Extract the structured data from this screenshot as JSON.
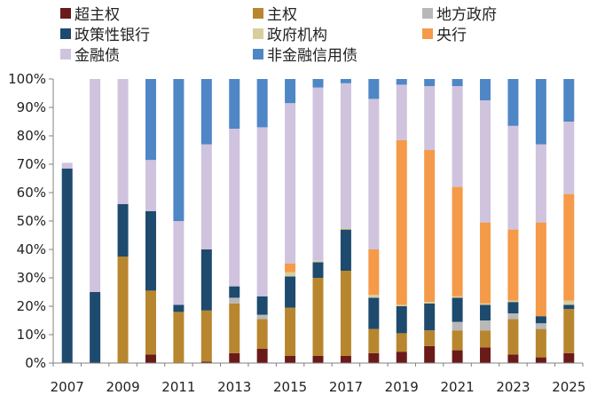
{
  "chart_data": {
    "type": "bar",
    "stacked": true,
    "title": "",
    "xlabel": "",
    "ylabel": "",
    "ylim": [
      0,
      100
    ],
    "y_tick_suffix": "%",
    "y_ticks": [
      0,
      10,
      20,
      30,
      40,
      50,
      60,
      70,
      80,
      90,
      100
    ],
    "y_tick_labels": [
      "0%",
      "10%",
      "20%",
      "30%",
      "40%",
      "50%",
      "60%",
      "70%",
      "80%",
      "90%",
      "100%"
    ],
    "grid": false,
    "legend_position": "top",
    "categories": [
      "2007",
      "2008",
      "2009",
      "2010",
      "2011",
      "2012",
      "2013",
      "2014",
      "2015",
      "2016",
      "2017",
      "2018",
      "2019",
      "2020",
      "2021",
      "2022",
      "2023",
      "2024",
      "2025"
    ],
    "x_tick_labels": [
      "2007",
      "2009",
      "2011",
      "2013",
      "2015",
      "2017",
      "2019",
      "2021",
      "2023",
      "2025"
    ],
    "series": [
      {
        "name": "超主权",
        "color": "#6b1a1a",
        "values": [
          0,
          0,
          0,
          3,
          0,
          0.5,
          3.5,
          5,
          2.5,
          2.5,
          2.5,
          3.5,
          4,
          6,
          4.5,
          5.5,
          3,
          2,
          3.5
        ]
      },
      {
        "name": "主权",
        "color": "#b8862e",
        "values": [
          0,
          0,
          37.5,
          22.5,
          18,
          18,
          17.5,
          10.5,
          17,
          27.5,
          30,
          8.5,
          6.5,
          5.5,
          7,
          6,
          12.5,
          10,
          15.5
        ]
      },
      {
        "name": "地方政府",
        "color": "#b8b8b8",
        "values": [
          0,
          0,
          0,
          0,
          0,
          0,
          2,
          1.5,
          0,
          0,
          0,
          0,
          0,
          0,
          3,
          3.5,
          2,
          2,
          0
        ]
      },
      {
        "name": "政策性银行",
        "color": "#1e4a6e",
        "values": [
          68.5,
          25,
          18.5,
          28,
          2.5,
          21.5,
          4,
          6.5,
          11,
          5.5,
          14.5,
          11,
          9.5,
          9.5,
          8.5,
          5.5,
          4,
          2.5,
          1.5
        ]
      },
      {
        "name": "政府机构",
        "color": "#d6cf9c",
        "values": [
          0,
          0,
          0,
          0,
          0,
          0,
          0,
          0,
          1.5,
          0.5,
          0.5,
          1,
          0.5,
          0.5,
          0.5,
          0.5,
          0.5,
          0,
          1.5
        ]
      },
      {
        "name": "央行",
        "color": "#f59a48",
        "values": [
          0,
          0,
          0,
          0,
          0,
          0,
          0,
          0,
          3,
          0,
          0,
          16,
          58,
          53.5,
          38.5,
          28.5,
          25,
          33,
          37.5
        ]
      },
      {
        "name": "金融债",
        "color": "#cfc3de",
        "values": [
          2,
          75,
          44,
          18,
          29.5,
          37,
          55.5,
          59.5,
          56.5,
          61,
          51,
          53,
          19.5,
          22.5,
          35.5,
          43,
          36.5,
          27.5,
          25.5
        ]
      },
      {
        "name": "非金融信用债",
        "color": "#4f86c6",
        "values": [
          0,
          0,
          0,
          28.5,
          50,
          23,
          17.5,
          17,
          8.5,
          3,
          1.5,
          7,
          2,
          2.5,
          2.5,
          7.5,
          16.5,
          23,
          15
        ]
      }
    ]
  }
}
